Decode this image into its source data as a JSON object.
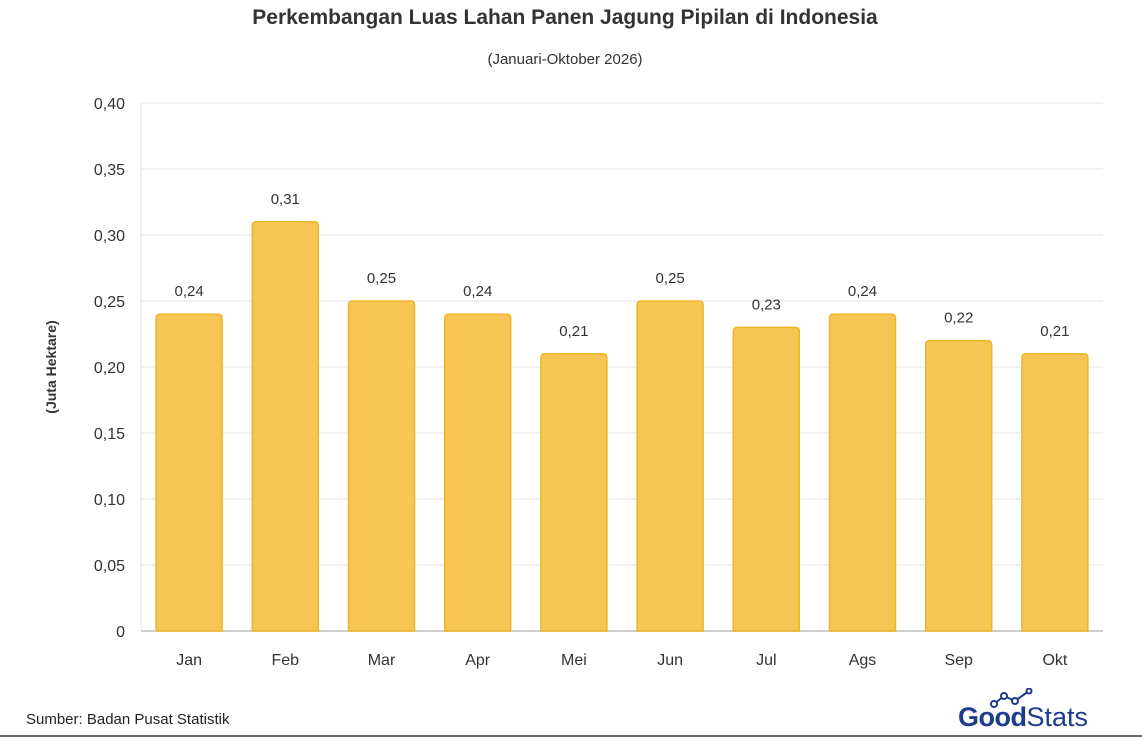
{
  "chart_data": {
    "type": "bar",
    "title": "Perkembangan Luas Lahan Panen Jagung Pipilan di Indonesia",
    "subtitle": "(Januari-Oktober 2026)",
    "ylabel": "(Juta Hektare)",
    "xlabel": "",
    "categories": [
      "Jan",
      "Feb",
      "Mar",
      "Apr",
      "Mei",
      "Jun",
      "Jul",
      "Ags",
      "Sep",
      "Okt"
    ],
    "values": [
      0.24,
      0.31,
      0.25,
      0.24,
      0.21,
      0.25,
      0.23,
      0.24,
      0.22,
      0.21
    ],
    "value_labels": [
      "0,24",
      "0,31",
      "0,25",
      "0,24",
      "0,21",
      "0,25",
      "0,23",
      "0,24",
      "0,22",
      "0,21"
    ],
    "ylim": [
      0,
      0.4
    ],
    "yticks": [
      0,
      0.05,
      0.1,
      0.15,
      0.2,
      0.25,
      0.3,
      0.35,
      0.4
    ],
    "ytick_labels": [
      "0",
      "0,05",
      "0,10",
      "0,15",
      "0,20",
      "0,25",
      "0,30",
      "0,35",
      "0,40"
    ],
    "grid": true,
    "legend": "none",
    "colors": {
      "bar": "#f6c553",
      "bar_stroke": "#f0b429",
      "grid": "#e3e3e3",
      "axis": "#bdbdbd",
      "text": "#333333"
    }
  },
  "footer": {
    "source": "Sumber: Badan Pusat Statistik",
    "logo_good": "Good",
    "logo_stats": "Stats",
    "logo_icon": "growth-chart-icon"
  }
}
